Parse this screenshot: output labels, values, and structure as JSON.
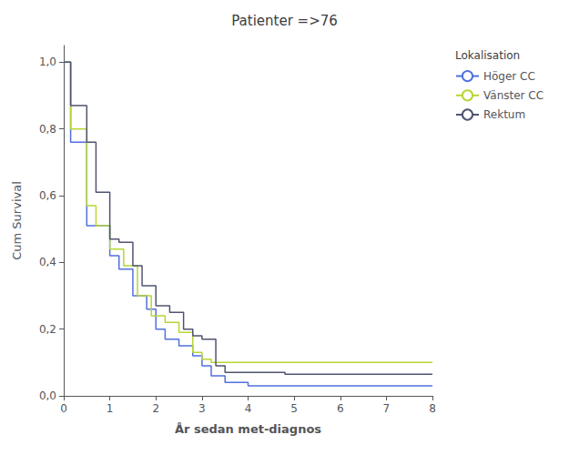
{
  "chart_data": {
    "type": "step",
    "title": "Patienter =>76",
    "xlabel": "År sedan met-diagnos",
    "ylabel": "Cum Survival",
    "legend_title": "Lokalisation",
    "legend": "right",
    "grid": false,
    "xlim": [
      0,
      8
    ],
    "ylim": [
      0.0,
      1.05
    ],
    "xticks": [
      0,
      1,
      2,
      3,
      4,
      5,
      6,
      7,
      8
    ],
    "yticks": [
      {
        "value": 0.0,
        "label": "0,0"
      },
      {
        "value": 0.2,
        "label": "0,2"
      },
      {
        "value": 0.4,
        "label": "0,4"
      },
      {
        "value": 0.6,
        "label": "0,6"
      },
      {
        "value": 0.8,
        "label": "0,8"
      },
      {
        "value": 1.0,
        "label": "1,0"
      }
    ],
    "series": [
      {
        "name": "Höger CC",
        "x": [
          0,
          0.15,
          0.5,
          1.0,
          1.2,
          1.5,
          1.8,
          2.0,
          2.2,
          2.5,
          2.8,
          3.0,
          3.2,
          3.5,
          4.0,
          4.3,
          8.0
        ],
        "values": [
          1.0,
          0.76,
          0.51,
          0.42,
          0.38,
          0.3,
          0.26,
          0.2,
          0.17,
          0.15,
          0.12,
          0.09,
          0.06,
          0.04,
          0.03,
          0.03,
          0.03
        ]
      },
      {
        "name": "Vänster CC",
        "x": [
          0,
          0.15,
          0.5,
          0.7,
          1.0,
          1.3,
          1.6,
          1.9,
          2.2,
          2.5,
          2.8,
          3.0,
          3.2,
          3.5,
          4.0,
          8.0
        ],
        "values": [
          1.0,
          0.8,
          0.57,
          0.51,
          0.44,
          0.39,
          0.3,
          0.24,
          0.22,
          0.19,
          0.13,
          0.11,
          0.1,
          0.1,
          0.1,
          0.1
        ]
      },
      {
        "name": "Rektum",
        "x": [
          0,
          0.15,
          0.5,
          0.7,
          1.0,
          1.2,
          1.5,
          1.7,
          2.0,
          2.3,
          2.6,
          2.8,
          3.0,
          3.3,
          3.5,
          4.0,
          4.8,
          8.0
        ],
        "values": [
          1.0,
          0.87,
          0.76,
          0.61,
          0.47,
          0.46,
          0.39,
          0.33,
          0.27,
          0.25,
          0.2,
          0.18,
          0.17,
          0.09,
          0.07,
          0.07,
          0.065,
          0.065
        ]
      }
    ]
  }
}
